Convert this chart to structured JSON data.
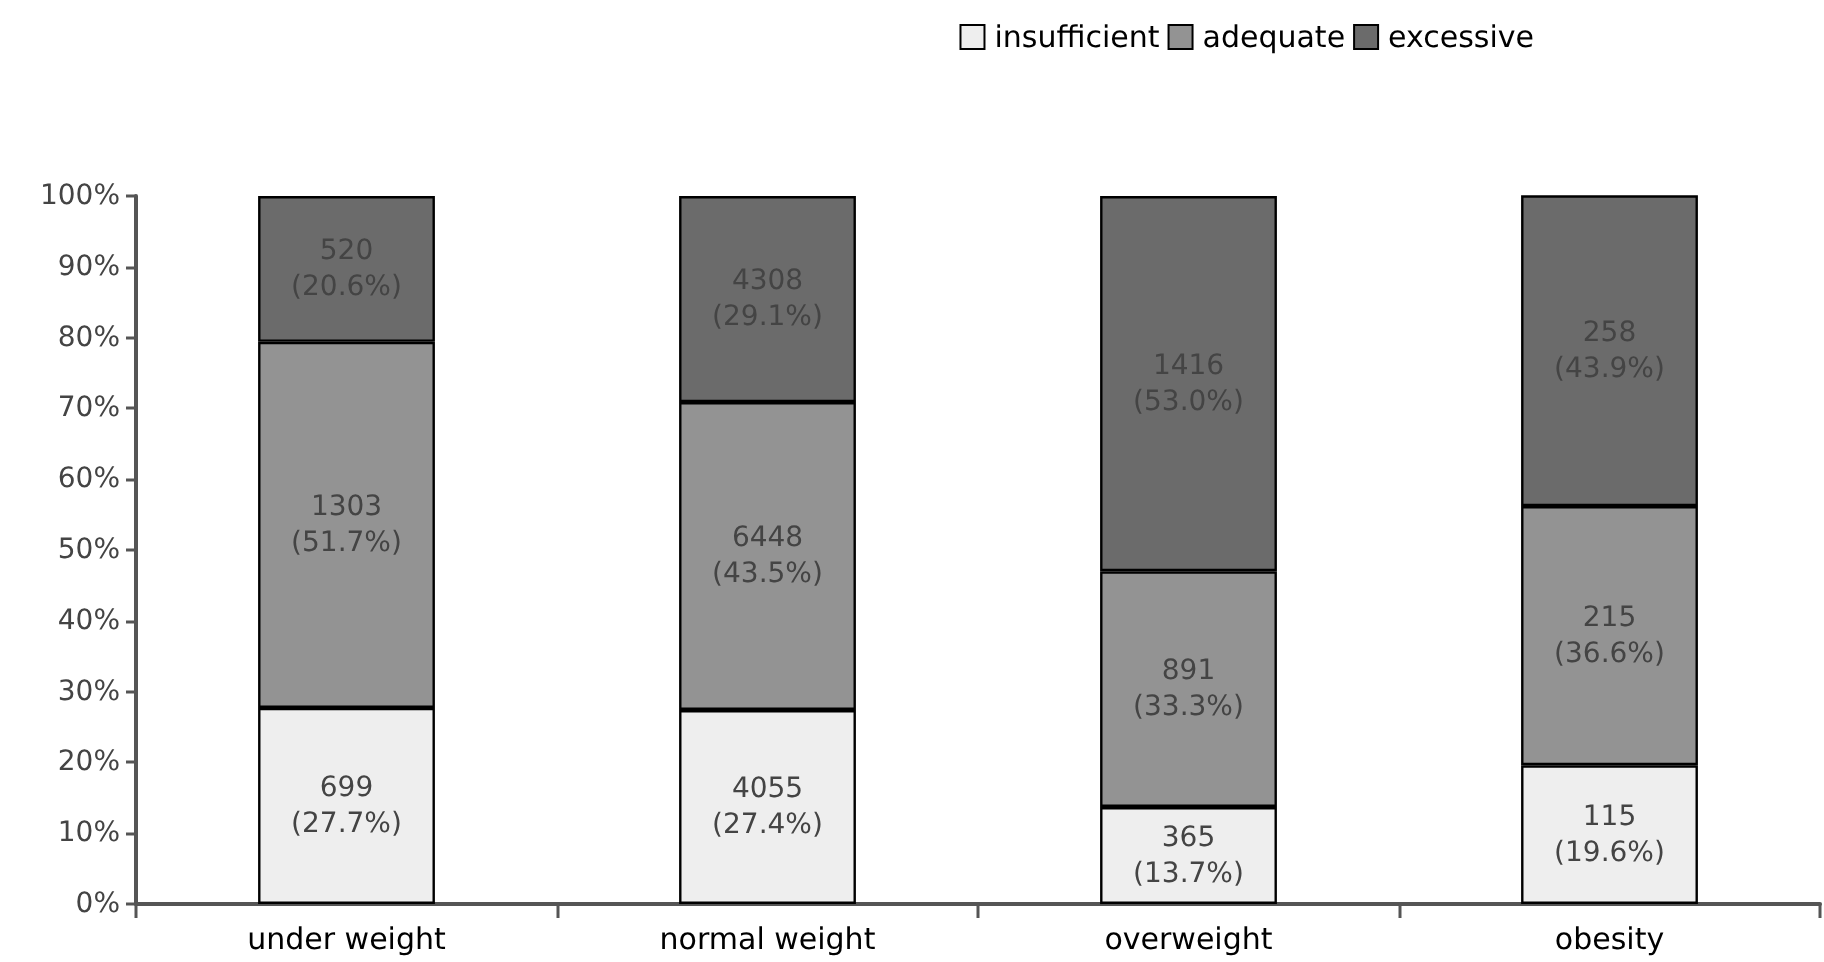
{
  "chart_data": {
    "type": "bar",
    "stacked": true,
    "categories": [
      "under weight",
      "normal weight",
      "overweight",
      "obesity"
    ],
    "series": [
      {
        "name": "insufficient",
        "color": "#eeeeee",
        "values": [
          27.7,
          27.4,
          13.7,
          19.6
        ],
        "value_labels": [
          "699\n(27.7%)",
          "4055\n(27.4%)",
          "365\n(13.7%)",
          "115\n(19.6%)"
        ]
      },
      {
        "name": "adequate",
        "color": "#939393",
        "values": [
          51.7,
          43.5,
          33.3,
          36.6
        ],
        "value_labels": [
          "1303\n(51.7%)",
          "6448\n(43.5%)",
          "891\n(33.3%)",
          "215\n(36.6%)"
        ]
      },
      {
        "name": "excessive",
        "color": "#6b6b6b",
        "values": [
          20.6,
          29.1,
          53.0,
          43.9
        ],
        "value_labels": [
          "520\n(20.6%)",
          "4308\n(29.1%)",
          "1416\n(53.0%)",
          "258\n(43.9%)"
        ]
      }
    ],
    "ylim": [
      0,
      100
    ],
    "yticks": [
      {
        "value": 0,
        "label": "0%"
      },
      {
        "value": 10,
        "label": "10%"
      },
      {
        "value": 20,
        "label": "20%"
      },
      {
        "value": 30,
        "label": "30%"
      },
      {
        "value": 40,
        "label": "40%"
      },
      {
        "value": 50,
        "label": "50%"
      },
      {
        "value": 60,
        "label": "60%"
      },
      {
        "value": 70,
        "label": "70%"
      },
      {
        "value": 80,
        "label": "80%"
      },
      {
        "value": 90,
        "label": "90%"
      },
      {
        "value": 100,
        "label": "100%"
      }
    ],
    "grid": false,
    "legend": "top right"
  }
}
